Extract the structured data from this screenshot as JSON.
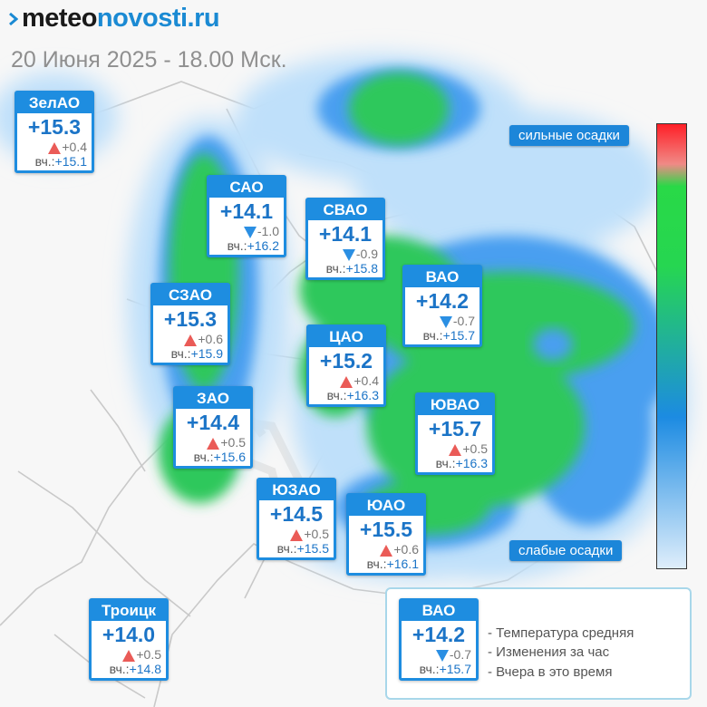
{
  "header": {
    "logo_prefix": "meteo",
    "logo_suffix": "novosti.ru",
    "subtitle": "20 Июня 2025 - 18.00 Мск."
  },
  "districts": [
    {
      "name": "ЗелАО",
      "temp": "+15.3",
      "dir": "up",
      "change": "+0.4",
      "y_label": "вч.:",
      "yesterday": "+15.1"
    },
    {
      "name": "САО",
      "temp": "+14.1",
      "dir": "down",
      "change": "-1.0",
      "y_label": "вч.:",
      "yesterday": "+16.2"
    },
    {
      "name": "СВАО",
      "temp": "+14.1",
      "dir": "down",
      "change": "-0.9",
      "y_label": "вч.:",
      "yesterday": "+15.8"
    },
    {
      "name": "ВАО",
      "temp": "+14.2",
      "dir": "down",
      "change": "-0.7",
      "y_label": "вч.:",
      "yesterday": "+15.7"
    },
    {
      "name": "СЗАО",
      "temp": "+15.3",
      "dir": "up",
      "change": "+0.6",
      "y_label": "вч.:",
      "yesterday": "+15.9"
    },
    {
      "name": "ЦАО",
      "temp": "+15.2",
      "dir": "up",
      "change": "+0.4",
      "y_label": "вч.:",
      "yesterday": "+16.3"
    },
    {
      "name": "ЗАО",
      "temp": "+14.4",
      "dir": "up",
      "change": "+0.5",
      "y_label": "вч.:",
      "yesterday": "+15.6"
    },
    {
      "name": "ЮВАО",
      "temp": "+15.7",
      "dir": "up",
      "change": "+0.5",
      "y_label": "вч.:",
      "yesterday": "+16.3"
    },
    {
      "name": "ЮЗАО",
      "temp": "+14.5",
      "dir": "up",
      "change": "+0.5",
      "y_label": "вч.:",
      "yesterday": "+15.5"
    },
    {
      "name": "ЮАО",
      "temp": "+15.5",
      "dir": "up",
      "change": "+0.6",
      "y_label": "вч.:",
      "yesterday": "+16.1"
    },
    {
      "name": "Троицк",
      "temp": "+14.0",
      "dir": "up",
      "change": "+0.5",
      "y_label": "вч.:",
      "yesterday": "+14.8"
    }
  ],
  "precip_scale": {
    "top_label": "сильные осадки",
    "bottom_label": "слабые осадки",
    "colors": [
      "#ff1f27",
      "#29d947",
      "#1c8be2",
      "#dfeefb"
    ]
  },
  "legend": {
    "sample": {
      "name": "ВАО",
      "temp": "+14.2",
      "dir": "down",
      "change": "-0.7",
      "y_label": "вч.:",
      "yesterday": "+15.7"
    },
    "lines": [
      "- Температура средняя",
      "- Изменения за час",
      "- Вчера в это время"
    ]
  },
  "colors": {
    "accent": "#1e8de0",
    "up": "#ea5b57",
    "down": "#2b8fe3"
  }
}
